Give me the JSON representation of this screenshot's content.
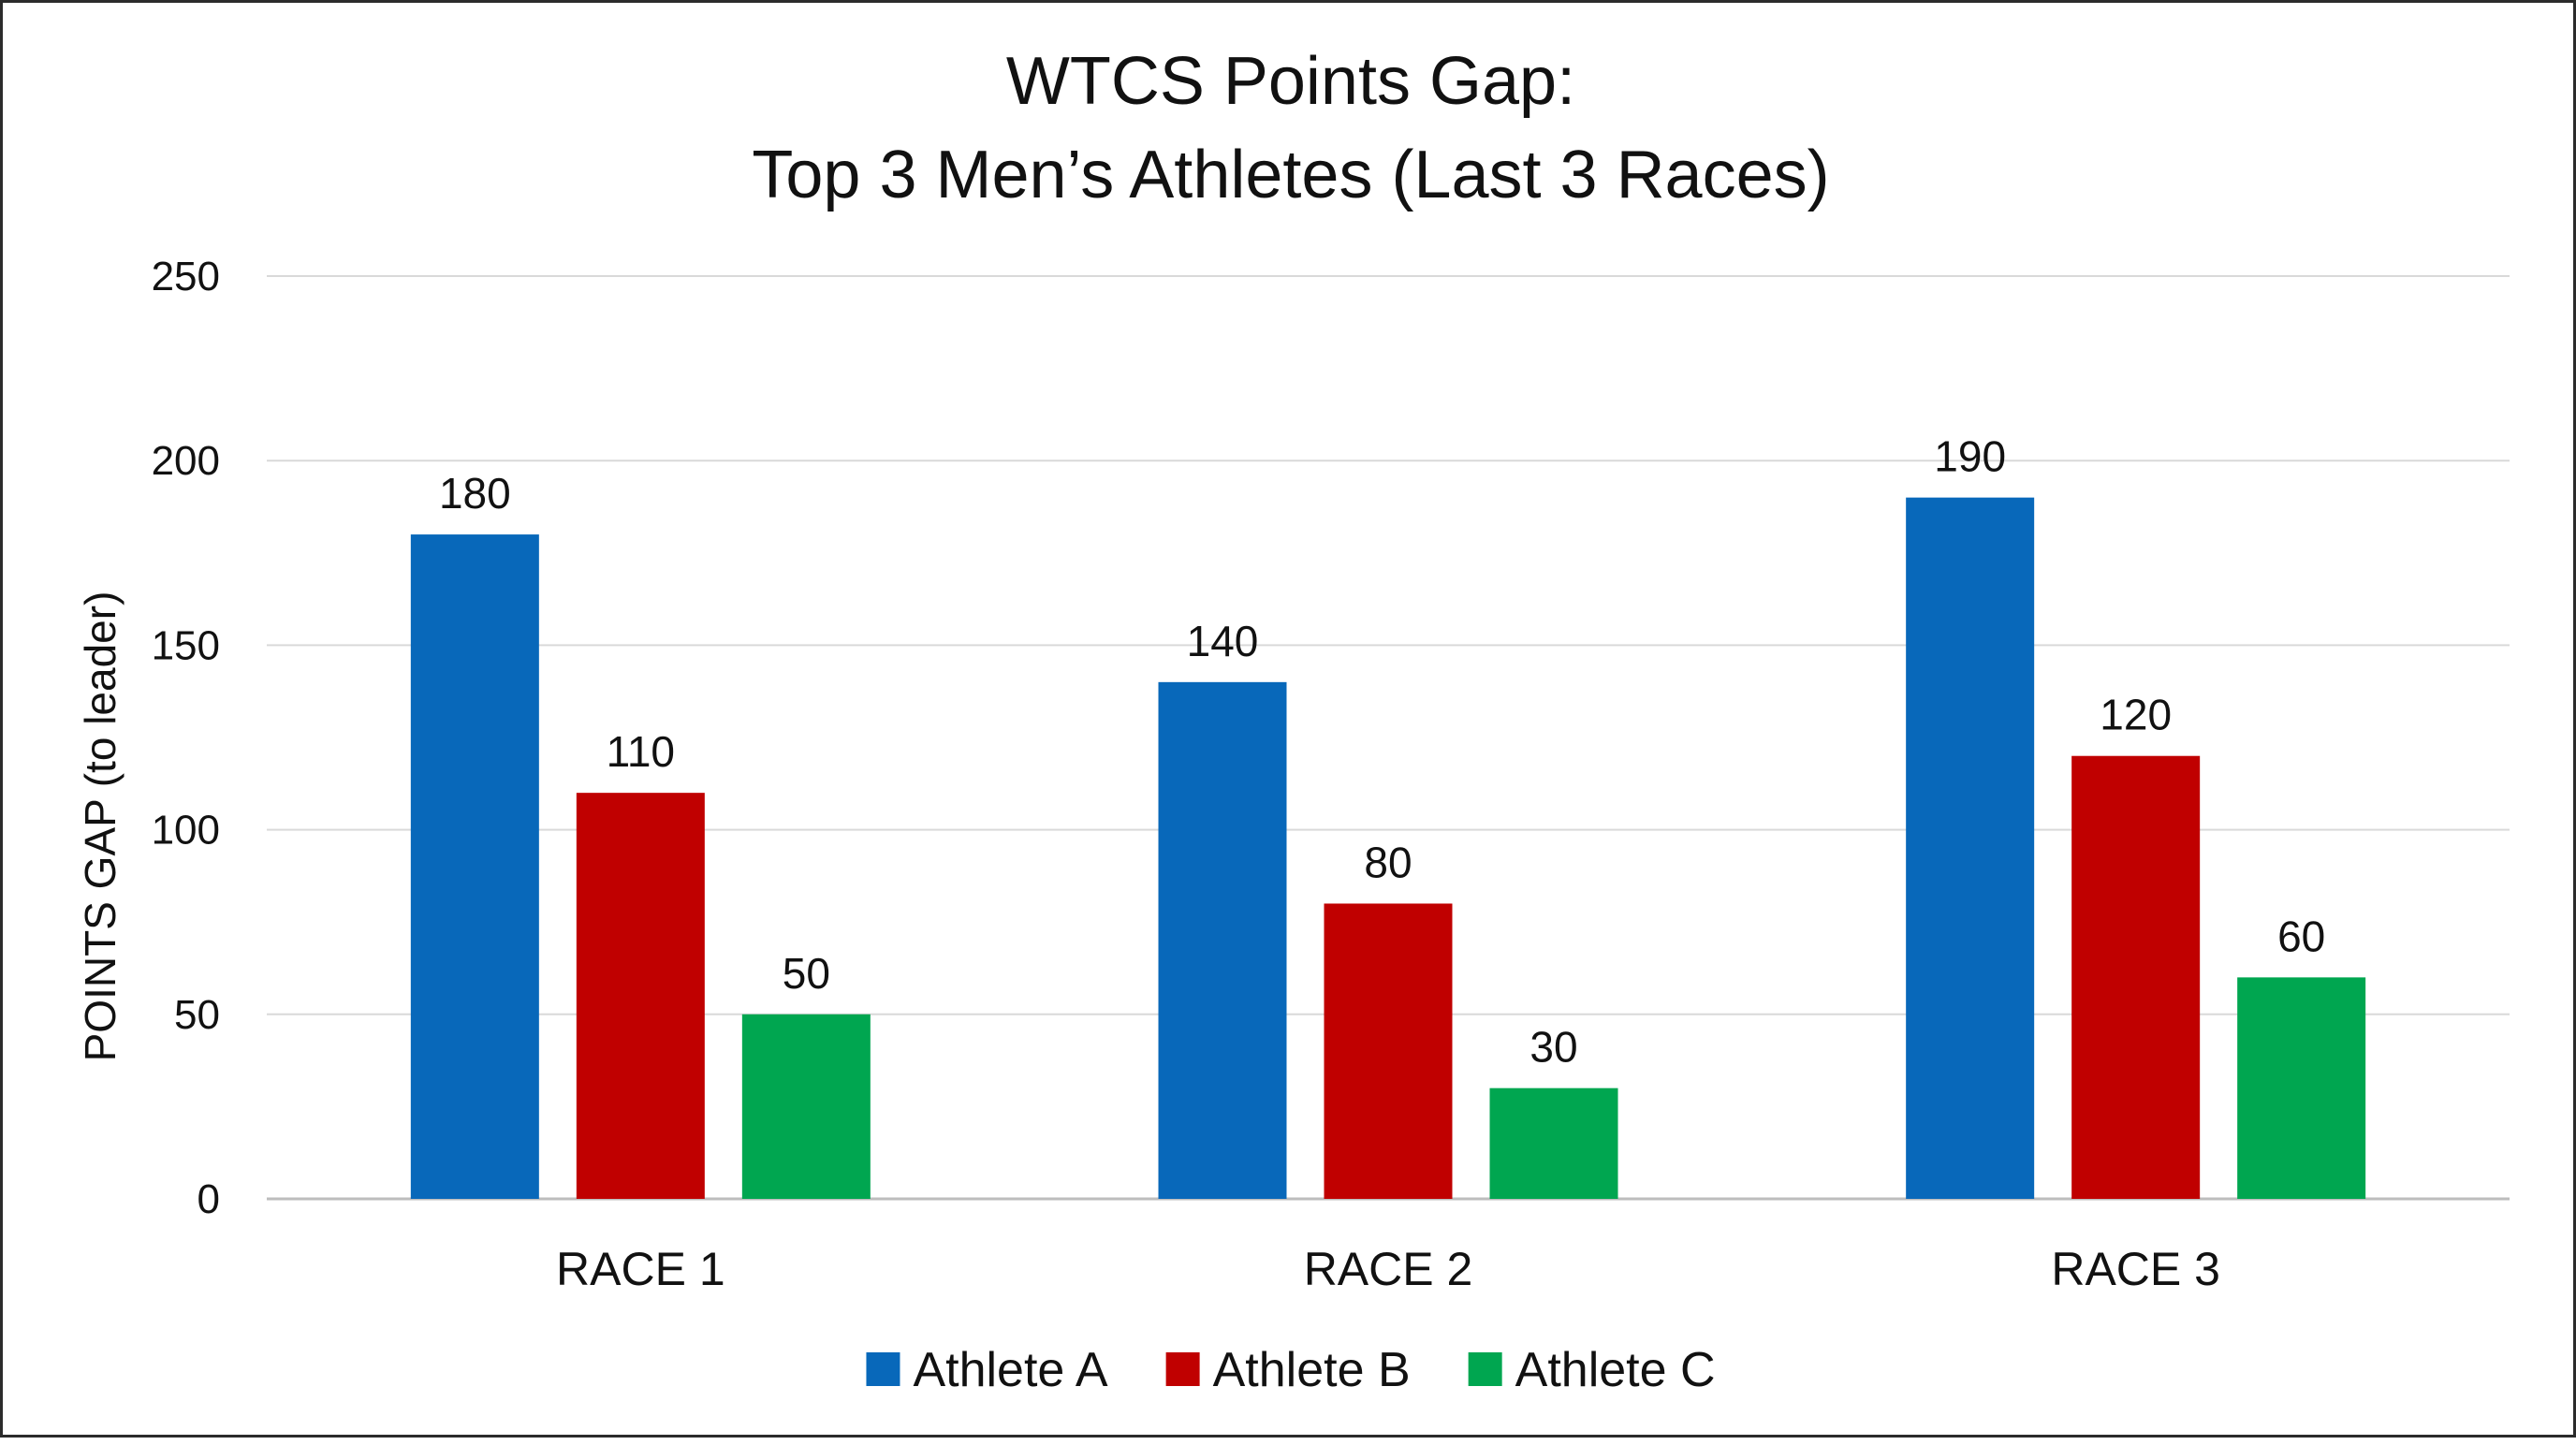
{
  "chart_data": {
    "type": "bar",
    "title": "WTCS Points Gap:",
    "subtitle": "Top 3 Men’s Athletes (Last 3 Races)",
    "xlabel": "",
    "ylabel": "POINTS GAP (to leader)",
    "ylim": [
      0,
      250
    ],
    "yticks": [
      0,
      50,
      100,
      150,
      200,
      250
    ],
    "grid": true,
    "legend_position": "bottom",
    "categories": [
      "RACE 1",
      "RACE 2",
      "RACE 3"
    ],
    "series": [
      {
        "name": "Athlete A",
        "color": "#0868BA",
        "values": [
          180,
          140,
          190
        ]
      },
      {
        "name": "Athlete B",
        "color": "#C00000",
        "values": [
          110,
          80,
          120
        ]
      },
      {
        "name": "Athlete C",
        "color": "#00A650",
        "values": [
          50,
          30,
          60
        ]
      }
    ]
  }
}
